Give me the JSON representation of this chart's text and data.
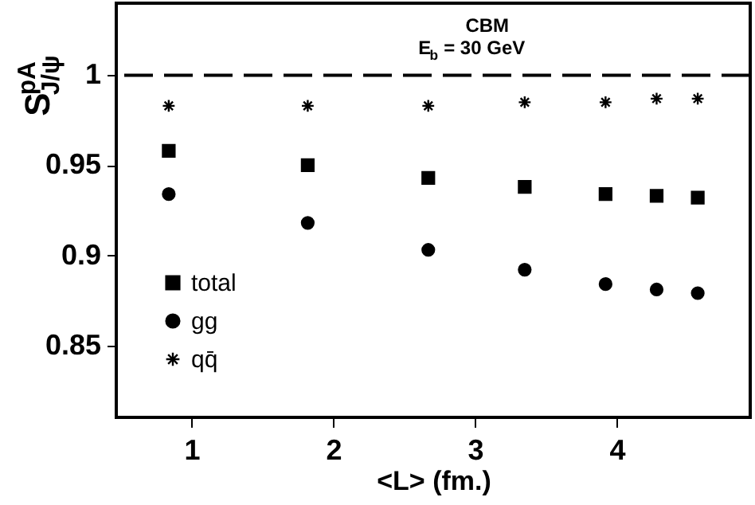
{
  "chart_data": {
    "type": "scatter",
    "xlabel": "<L> (fm.)",
    "ylabel": "S$^{pA}$$_{J/ψ}$",
    "annotations": [
      "CBM",
      "E$_{b}$ = 30 GeV"
    ],
    "x": [
      0.84,
      1.82,
      2.67,
      3.35,
      3.92,
      4.28,
      4.57
    ],
    "series": [
      {
        "name": "total",
        "color": "#000000",
        "marker": "square",
        "values": [
          0.958,
          0.95,
          0.943,
          0.938,
          0.934,
          0.933,
          0.932
        ]
      },
      {
        "name": "gg",
        "color": "#000000",
        "marker": "circle",
        "values": [
          0.934,
          0.918,
          0.903,
          0.892,
          0.884,
          0.881,
          0.879
        ]
      },
      {
        "name": "qq̄",
        "color": "#000000",
        "marker": "cross",
        "values": [
          0.983,
          0.983,
          0.983,
          0.985,
          0.985,
          0.987,
          0.987
        ]
      }
    ],
    "xlim": [
      0.47,
      4.94
    ],
    "ylim": [
      0.81,
      1.04
    ],
    "xticks": [
      1,
      2,
      3,
      4
    ],
    "yticks": [
      0.85,
      0.9,
      0.95,
      1
    ],
    "ref_lines": [
      {
        "axis": "y",
        "value": 1,
        "line_style": "dashed",
        "color": "#000000"
      }
    ],
    "grid": false,
    "legend": "bottom left"
  }
}
